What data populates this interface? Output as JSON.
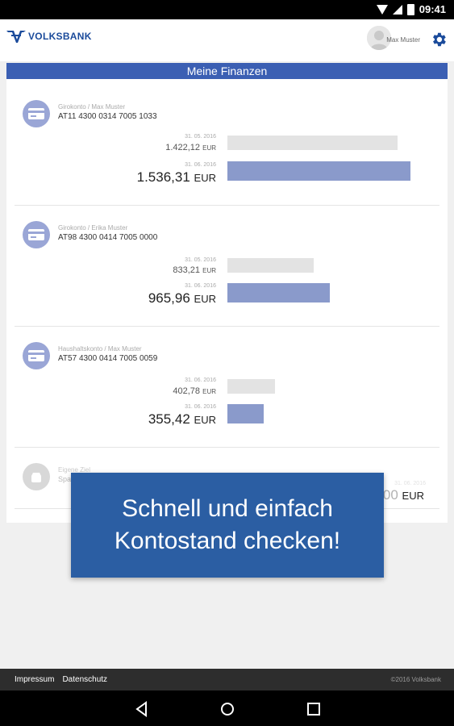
{
  "status_bar": {
    "time": "09:41"
  },
  "header": {
    "brand": "VOLKSBANK",
    "user_name": "Max Muster"
  },
  "main": {
    "title": "Meine Finanzen",
    "accounts": [
      {
        "name": "Girokonto / Max Muster",
        "iban": "AT11 4300 0314 7005 1033",
        "prev_date": "31. 05. 2016",
        "prev_amount": "1.422,12",
        "prev_currency": "EUR",
        "cur_date": "31. 06. 2016",
        "cur_amount": "1.536,31",
        "cur_currency": "EUR",
        "prev_bar_ratio": 0.93,
        "cur_bar_ratio": 1.0
      },
      {
        "name": "Girokonto / Erika Muster",
        "iban": "AT98 4300 0414 7005 0000",
        "prev_date": "31. 05. 2016",
        "prev_amount": "833,21",
        "prev_currency": "EUR",
        "cur_date": "31. 06. 2016",
        "cur_amount": "965,96",
        "cur_currency": "EUR",
        "prev_bar_ratio": 0.47,
        "cur_bar_ratio": 0.56
      },
      {
        "name": "Haushaltskonto / Max Muster",
        "iban": "AT57 4300 0414 7005 0059",
        "prev_date": "31. 06. 2016",
        "prev_amount": "402,78",
        "prev_currency": "EUR",
        "cur_date": "31. 06. 2016",
        "cur_amount": "355,42",
        "cur_currency": "EUR",
        "prev_bar_ratio": 0.26,
        "cur_bar_ratio": 0.2
      },
      {
        "name": "Eigene Ziel",
        "iban": "Sparen",
        "cur_date": "31. 06. 2016",
        "cur_amount": "1.000,00",
        "cur_currency": "EUR"
      }
    ]
  },
  "overlay": {
    "line1": "Schnell und einfach",
    "line2": "Kontostand checken!"
  },
  "footer": {
    "impressum": "Impressum",
    "datenschutz": "Datenschutz",
    "copyright": "©2016 Volksbank"
  },
  "colors": {
    "brand": "#1b4b9b",
    "header_bar": "#3b5fb3",
    "bar_current": "#8a9acb",
    "bar_previous": "#e3e3e3",
    "overlay": "#2b5ea3"
  }
}
